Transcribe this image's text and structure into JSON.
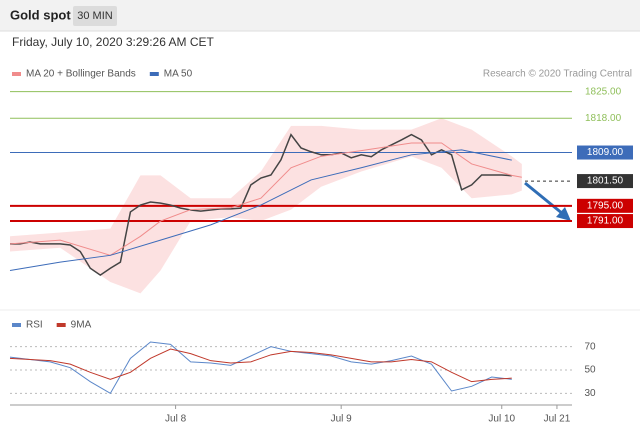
{
  "header": {
    "title": "Gold spot",
    "interval": "30 MIN",
    "date": "Friday, July 10, 2020 3:29:26 AM CET"
  },
  "chart_data": [
    {
      "type": "line",
      "watermark": "Research © 2020 Trading Central",
      "xlim": [
        0,
        112
      ],
      "ylim": [
        1770,
        1827
      ],
      "series": [
        {
          "color": "#444444",
          "x": [
            0,
            2,
            4,
            6,
            8,
            10,
            12,
            14,
            16,
            18,
            20,
            22,
            24,
            26,
            28,
            30,
            32,
            34,
            36,
            38,
            40,
            42,
            44,
            46,
            48,
            50,
            52,
            54,
            56,
            58,
            60,
            62,
            64,
            66,
            68,
            70,
            72,
            74,
            76,
            78,
            80,
            82,
            84,
            86,
            88,
            90,
            92,
            94,
            96,
            98,
            100
          ],
          "values": [
            1785,
            1785,
            1785.5,
            1785,
            1785,
            1785,
            1784.7,
            1783,
            1778.6,
            1776.8,
            1778.6,
            1780.2,
            1793.4,
            1795.2,
            1796,
            1795.7,
            1795.2,
            1794.4,
            1793.9,
            1793.6,
            1793.9,
            1794.2,
            1794.2,
            1794.4,
            1800.5,
            1802.3,
            1803.1,
            1807.1,
            1813.7,
            1810.2,
            1809.2,
            1808.4,
            1808.4,
            1808.9,
            1807.6,
            1808.4,
            1807.9,
            1809.7,
            1811,
            1812.3,
            1813.7,
            1812.3,
            1808.4,
            1809.7,
            1808.4,
            1799.2,
            1800.5,
            1803.1,
            1803.1,
            1803.1,
            1802.9
          ]
        },
        {
          "name": "MA 20 + Bollinger Bands",
          "color": "#f08c8c",
          "band_color": "#fbd9d9",
          "x": [
            0,
            10,
            20,
            26,
            30,
            36,
            44,
            50,
            56,
            62,
            70,
            80,
            86,
            92,
            100,
            102
          ],
          "values": [
            1785,
            1786,
            1782,
            1787,
            1791,
            1794,
            1794.5,
            1797,
            1805,
            1808,
            1809.5,
            1811.5,
            1811.5,
            1806,
            1803,
            1802.5
          ],
          "upper": [
            1787,
            1788,
            1789,
            1803,
            1803,
            1797,
            1797,
            1804,
            1816,
            1816,
            1815,
            1815,
            1818,
            1815,
            1808,
            1806
          ],
          "lower": [
            1783,
            1784,
            1775,
            1772,
            1778,
            1791,
            1792,
            1791,
            1794,
            1800,
            1804,
            1808,
            1805,
            1797,
            1798,
            1799
          ]
        },
        {
          "name": "MA 50",
          "color": "#3d6cb9",
          "x": [
            0,
            10,
            20,
            30,
            40,
            50,
            60,
            70,
            80,
            90,
            100
          ],
          "values": [
            1778,
            1780.2,
            1782,
            1786,
            1790,
            1795.2,
            1801.8,
            1805,
            1808.4,
            1809.7,
            1807
          ]
        }
      ],
      "levels": [
        {
          "value": 1825,
          "label": "1825.00",
          "color": "#8fbf5a",
          "style": "text"
        },
        {
          "value": 1818,
          "label": "1818.00",
          "color": "#8fbf5a",
          "style": "text"
        },
        {
          "value": 1809,
          "label": "1809.00",
          "color": "#3d6cb9",
          "style": "box"
        },
        {
          "value": 1801.5,
          "label": "1801.50",
          "color": "#333333",
          "style": "box",
          "dashed": true
        },
        {
          "value": 1795,
          "label": "1795.00",
          "color": "#cc0000",
          "style": "box"
        },
        {
          "value": 1791,
          "label": "1791.00",
          "color": "#cc0000",
          "style": "box"
        }
      ]
    },
    {
      "type": "line",
      "xlim": [
        0,
        112
      ],
      "ylim": [
        20,
        80
      ],
      "yticks": [
        30,
        50,
        70
      ],
      "grid": true,
      "xticks": [
        {
          "value": 33,
          "label": "Jul 8"
        },
        {
          "value": 66,
          "label": "Jul 9"
        },
        {
          "value": 98,
          "label": "Jul 10"
        },
        {
          "value": 109,
          "label": "Jul 21"
        }
      ],
      "series": [
        {
          "name": "RSI",
          "color": "#5b87c9",
          "x": [
            0,
            4,
            8,
            12,
            16,
            20,
            24,
            28,
            32,
            36,
            40,
            44,
            48,
            52,
            56,
            60,
            64,
            68,
            72,
            76,
            80,
            84,
            88,
            92,
            96,
            100
          ],
          "values": [
            61,
            59,
            57,
            52,
            40,
            30,
            60,
            74,
            72,
            57,
            56,
            54,
            62,
            70,
            66,
            64,
            62,
            57,
            55,
            58,
            62,
            55,
            32,
            36,
            44,
            42
          ]
        },
        {
          "name": "9MA",
          "color": "#c0392b",
          "x": [
            0,
            4,
            8,
            12,
            16,
            20,
            24,
            28,
            32,
            36,
            40,
            44,
            48,
            52,
            56,
            60,
            64,
            68,
            72,
            76,
            80,
            84,
            88,
            92,
            96,
            100
          ],
          "values": [
            60,
            59,
            58,
            55,
            48,
            42,
            48,
            60,
            68,
            64,
            58,
            56,
            57,
            63,
            66,
            65,
            63,
            60,
            57,
            57,
            59,
            57,
            48,
            40,
            42,
            43
          ]
        }
      ]
    }
  ]
}
